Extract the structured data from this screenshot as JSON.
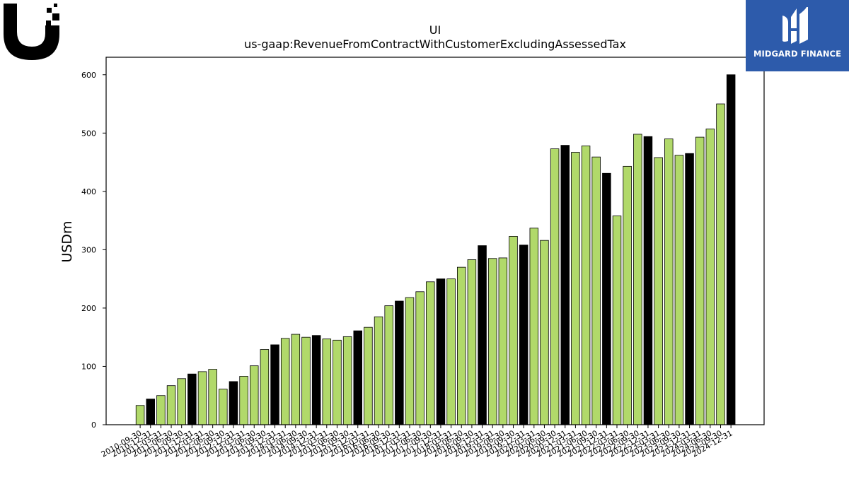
{
  "branding": {
    "company_logo_icon": "ui-logo-icon",
    "publisher_name": "MIDGARD FINANCE",
    "publisher_logo_icon": "midgard-logo-icon",
    "publisher_bg_color": "#2d5bab"
  },
  "chart_data": {
    "type": "bar",
    "title": "UI",
    "subtitle": "us-gaap:RevenueFromContractWithCustomerExcludingAssessedTax",
    "xlabel": "",
    "ylabel": "USDm",
    "ylim": [
      0,
      630
    ],
    "yticks": [
      0,
      100,
      200,
      300,
      400,
      500,
      600
    ],
    "grid": false,
    "colors": {
      "quarter": "#b1d96a",
      "fiscal_year_end": "#000000",
      "edge": "#000000"
    },
    "categories": [
      "2010-09-30",
      "2010-12-31",
      "2011-03-31",
      "2011-06-30",
      "2011-09-30",
      "2011-12-31",
      "2012-03-31",
      "2012-06-30",
      "2012-09-30",
      "2012-12-31",
      "2013-03-31",
      "2013-06-30",
      "2013-09-30",
      "2013-12-31",
      "2014-03-31",
      "2014-06-30",
      "2014-09-30",
      "2014-12-31",
      "2015-03-31",
      "2015-06-30",
      "2015-09-30",
      "2015-12-31",
      "2016-03-31",
      "2016-06-30",
      "2016-09-30",
      "2016-12-31",
      "2017-03-31",
      "2017-06-30",
      "2017-09-30",
      "2017-12-31",
      "2018-03-31",
      "2018-06-30",
      "2018-09-30",
      "2018-12-31",
      "2019-03-31",
      "2019-06-30",
      "2019-09-30",
      "2019-12-31",
      "2020-03-31",
      "2020-06-30",
      "2020-09-30",
      "2020-12-31",
      "2021-03-31",
      "2021-06-30",
      "2021-09-30",
      "2021-12-31",
      "2022-03-31",
      "2022-06-30",
      "2022-09-30",
      "2022-12-31",
      "2023-03-31",
      "2023-06-30",
      "2023-09-30",
      "2023-12-31",
      "2024-03-31",
      "2024-06-30",
      "2024-09-30",
      "2024-12-31"
    ],
    "values": [
      33,
      44,
      50,
      67,
      79,
      87,
      91,
      95,
      61,
      74,
      83,
      101,
      129,
      137,
      148,
      155,
      150,
      153,
      147,
      145,
      151,
      161,
      167,
      185,
      204,
      212,
      218,
      228,
      245,
      250,
      250,
      270,
      283,
      307,
      285,
      286,
      323,
      308,
      337,
      316,
      473,
      479,
      467,
      478,
      459,
      431,
      358,
      443,
      498,
      494,
      458,
      490,
      462,
      465,
      493,
      507,
      550,
      600
    ],
    "is_fiscal_year_end": [
      0,
      1,
      0,
      0,
      0,
      1,
      0,
      0,
      0,
      1,
      0,
      0,
      0,
      1,
      0,
      0,
      0,
      1,
      0,
      0,
      0,
      1,
      0,
      0,
      0,
      1,
      0,
      0,
      0,
      1,
      0,
      0,
      0,
      1,
      0,
      0,
      0,
      1,
      0,
      0,
      0,
      1,
      0,
      0,
      0,
      1,
      0,
      0,
      0,
      1,
      0,
      0,
      0,
      1,
      0,
      0,
      0,
      1
    ]
  }
}
